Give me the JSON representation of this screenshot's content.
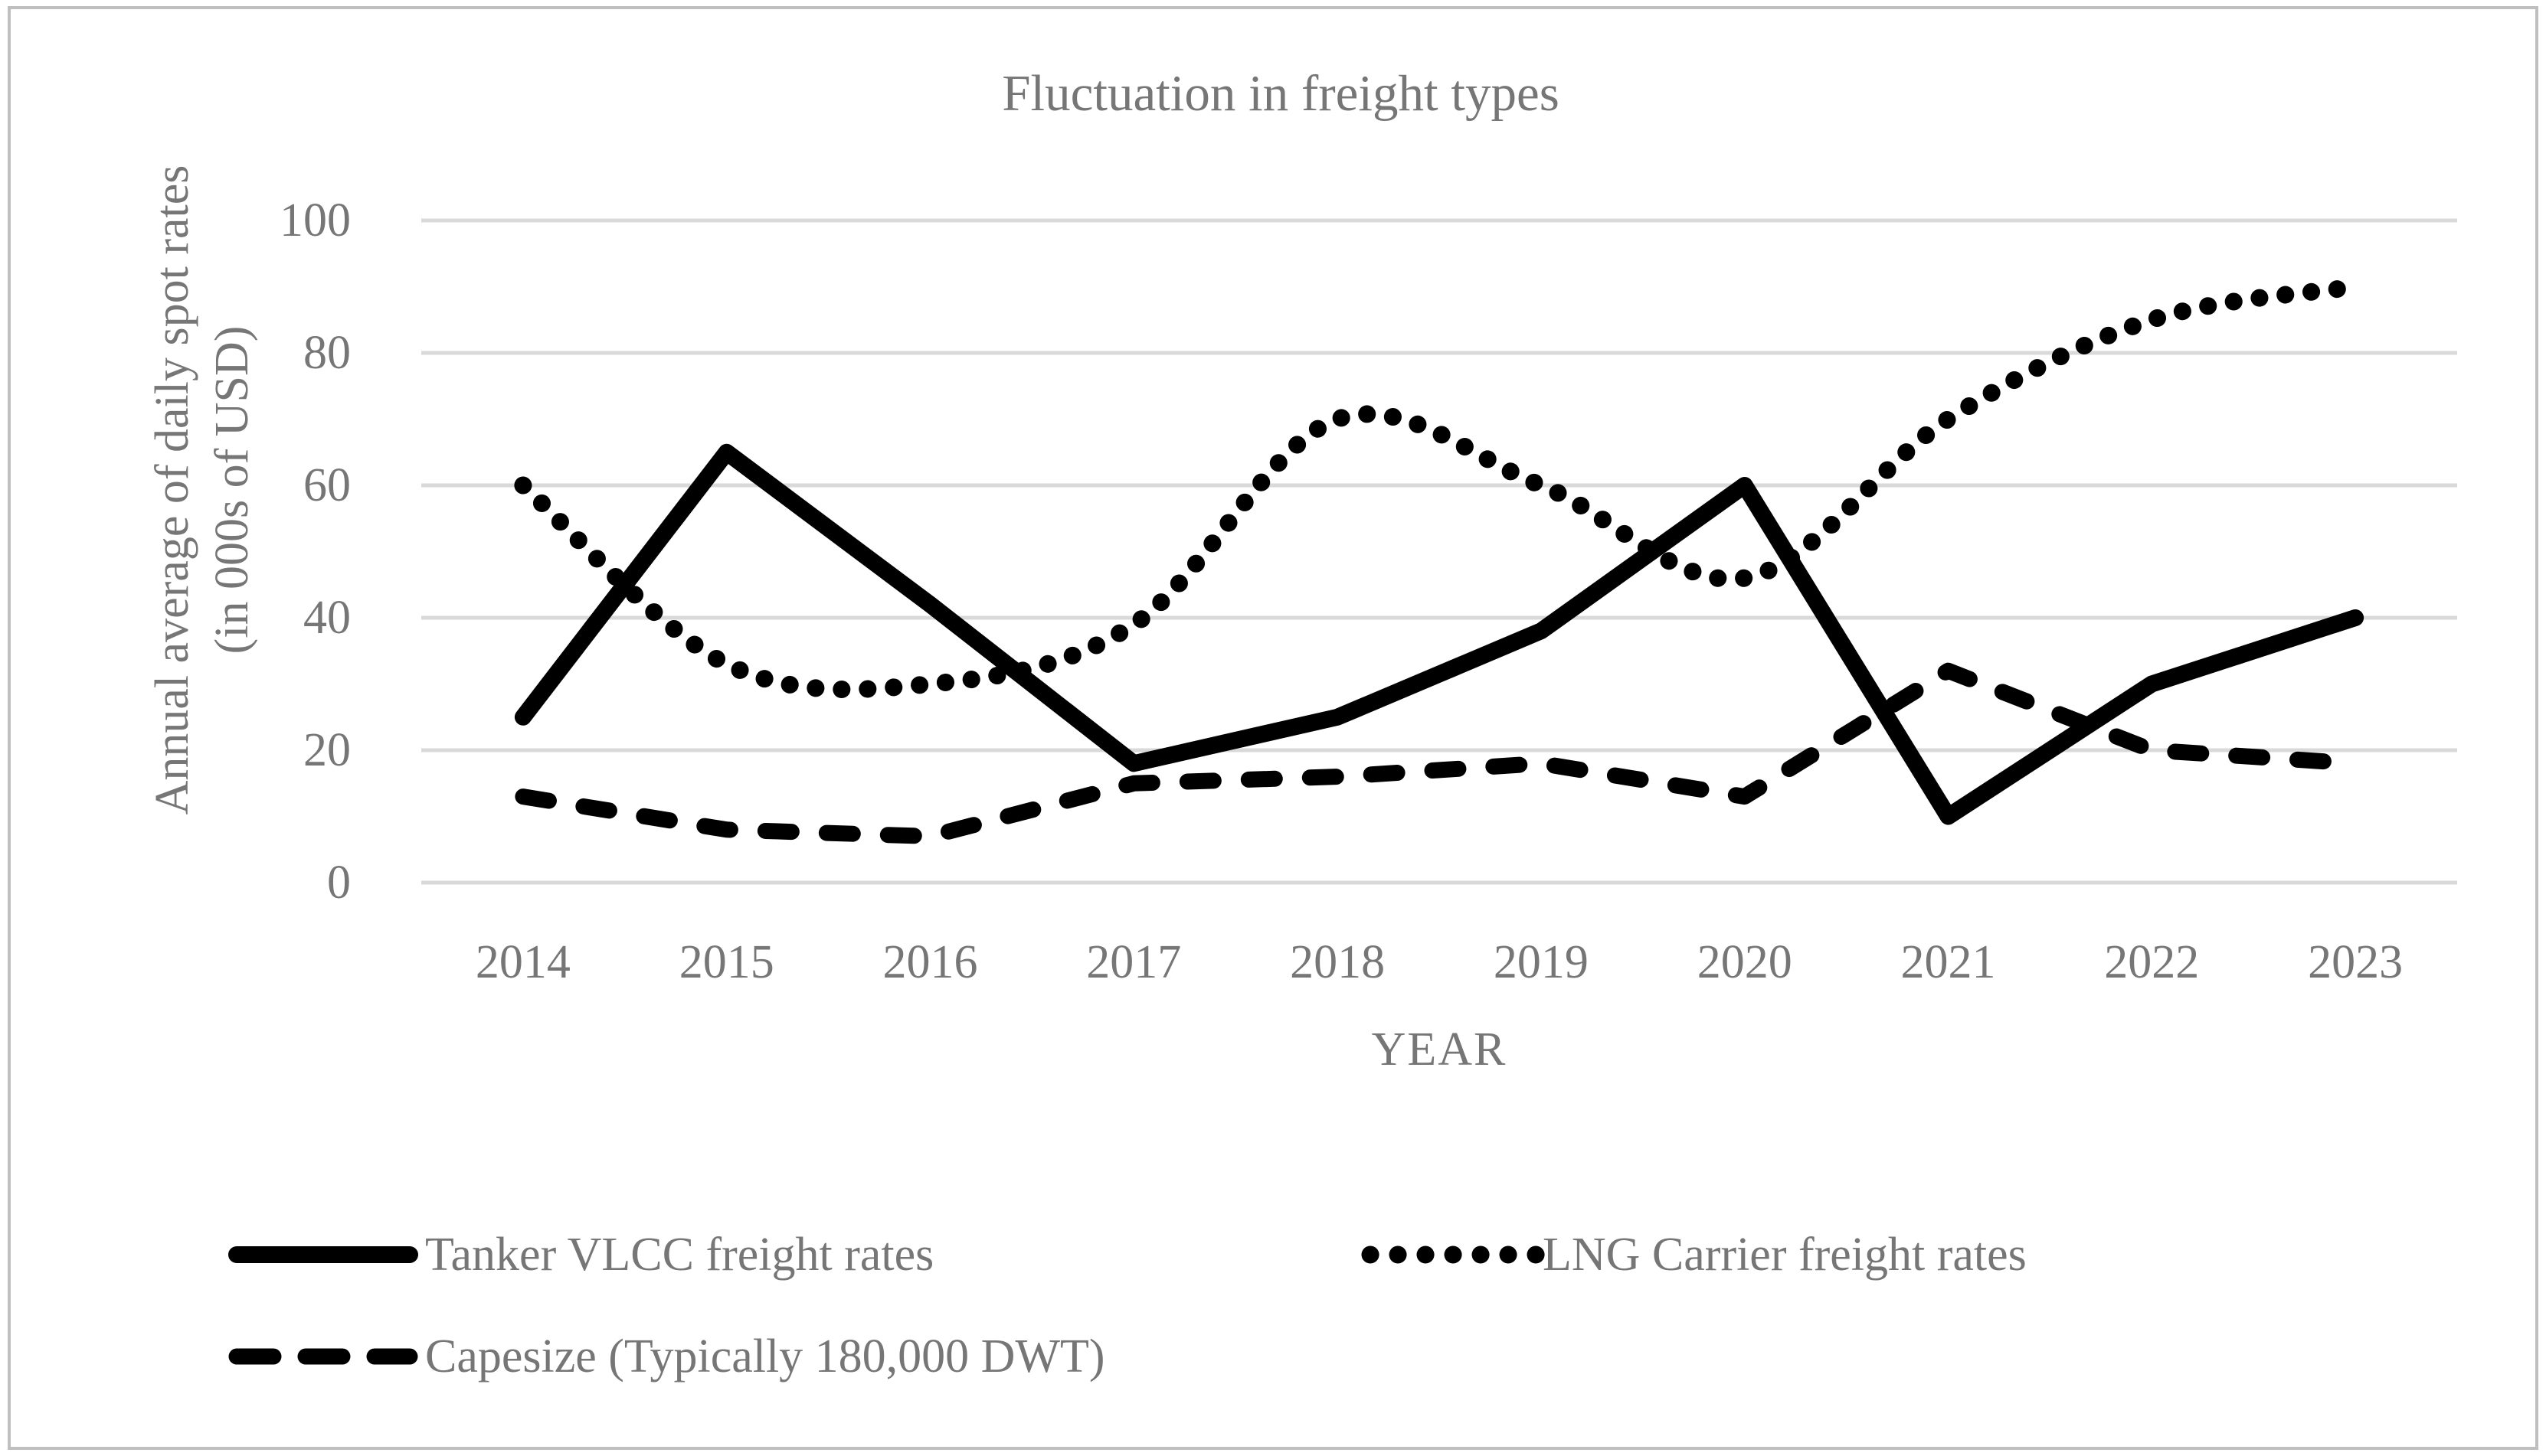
{
  "chart_data": {
    "type": "line",
    "title": "Fluctuation in freight types",
    "xlabel": "YEAR",
    "ylabel_lines": [
      "Annual average of daily spot rates",
      "(in 000s of USD)"
    ],
    "categories": [
      "2014",
      "2015",
      "2016",
      "2017",
      "2018",
      "2019",
      "2020",
      "2021",
      "2022",
      "2023"
    ],
    "series": [
      {
        "name": "Tanker VLCC freight rates",
        "line_style": "solid",
        "smooth": false,
        "values": [
          25,
          65,
          42,
          18,
          25,
          38,
          60,
          10,
          30,
          40
        ]
      },
      {
        "name": "LNG Carrier freight rates",
        "line_style": "dotted",
        "smooth": true,
        "values": [
          60,
          33,
          30,
          39,
          70,
          60,
          46,
          70,
          85,
          90
        ]
      },
      {
        "name": "Capesize (Typically 180,000 DWT)",
        "line_style": "dashed",
        "smooth": false,
        "values": [
          13,
          8,
          7,
          15,
          16,
          18,
          13,
          32,
          20,
          18
        ]
      }
    ],
    "ylim": [
      0,
      100
    ],
    "yticks": [
      100,
      80,
      60,
      40,
      20,
      0
    ],
    "grid": "horizontal",
    "legend_position": "bottom",
    "colors": {
      "line": "#000000",
      "text": "#767676",
      "gridline": "#d9d9d9",
      "border": "#bfbfbf",
      "background": "#ffffff"
    }
  }
}
